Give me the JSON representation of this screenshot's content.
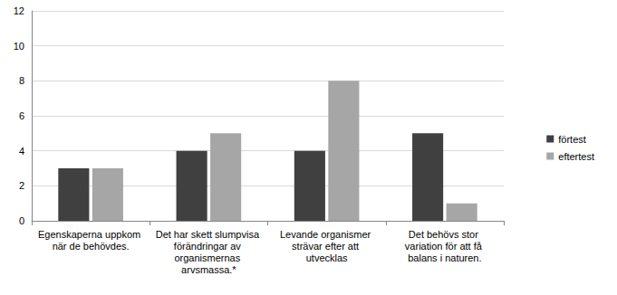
{
  "chart_data": {
    "type": "bar",
    "categories": [
      "Egenskaperna uppkom när de behövdes.",
      "Det har skett slumpvisa förändringar av organismernas arvsmassa.*",
      "Levande organismer strävar efter att utvecklas",
      "Det behövs stor variation för att få balans i naturen."
    ],
    "series": [
      {
        "name": "förtest",
        "color": "#404040",
        "values": [
          3,
          4,
          4,
          5
        ]
      },
      {
        "name": "eftertest",
        "color": "#a6a6a6",
        "values": [
          3,
          5,
          8,
          1
        ]
      }
    ],
    "ylim": [
      0,
      12
    ],
    "yticks": [
      0,
      2,
      4,
      6,
      8,
      10,
      12
    ],
    "grid": true,
    "legend": "right"
  }
}
